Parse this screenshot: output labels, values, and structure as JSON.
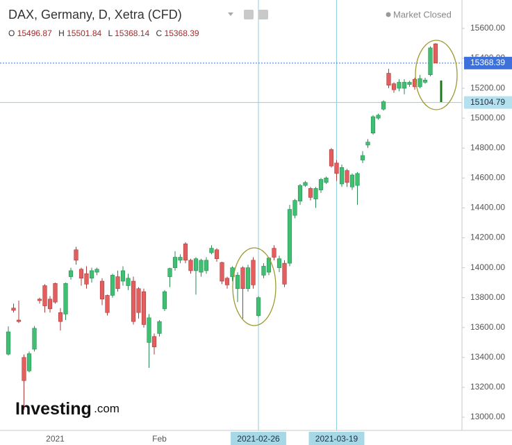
{
  "chart_data": {
    "type": "candlestick",
    "title": "DAX, Germany, D, Xetra (CFD)",
    "status": "Market Closed",
    "ohlc_labels": [
      "O",
      "H",
      "L",
      "C"
    ],
    "brand": "Investing",
    "brand_suffix": ".com",
    "categories": [
      null,
      null,
      null,
      null,
      null,
      null,
      null,
      null,
      null,
      "2021",
      null,
      null,
      null,
      null,
      null,
      null,
      null,
      null,
      null,
      null,
      null,
      null,
      null,
      null,
      null,
      null,
      null,
      null,
      null,
      "Feb",
      null,
      null,
      null,
      null,
      null,
      null,
      null,
      null,
      null,
      null,
      null,
      null,
      null,
      null,
      null,
      null,
      null,
      null,
      "2021-02-26",
      null,
      null,
      null,
      null,
      null,
      null,
      null,
      null,
      null,
      null,
      null,
      null,
      null,
      null,
      "2021-03-19",
      null,
      null,
      null,
      null,
      null,
      null,
      null,
      null,
      null,
      null,
      null,
      null,
      null,
      null,
      null,
      null,
      null,
      null,
      null
    ],
    "highlighted_categories": [
      48,
      63
    ],
    "open": [
      13422,
      13730,
      13650,
      13400,
      13310,
      13455,
      13790,
      13880,
      13790,
      13895,
      13700,
      13690,
      13940,
      14120,
      13990,
      13960,
      13930,
      13970,
      13910,
      13815,
      13815,
      13940,
      13910,
      13880,
      13910,
      13860,
      13840,
      13500,
      13540,
      13560,
      13725,
      13940,
      14000,
      14050,
      14160,
      14050,
      13980,
      13970,
      13980,
      14100,
      14120,
      14035,
      13930,
      13940,
      13860,
      14000,
      13860,
      14050,
      13680,
      13950,
      13970,
      14130,
      14000,
      14030,
      14030,
      14350,
      14445,
      14550,
      14530,
      14460,
      14520,
      14570,
      14790,
      14700,
      14560,
      14650,
      14540,
      14550,
      14720,
      14820,
      14900,
      15000,
      15060,
      15300,
      15230,
      15200,
      15200,
      15225,
      15260,
      15210,
      15240,
      15290,
      15496.87
    ],
    "high": [
      13608,
      13760,
      13780,
      13420,
      13440,
      13610,
      13800,
      13890,
      13810,
      13900,
      13730,
      13900,
      14000,
      14140,
      14000,
      14010,
      14000,
      14000,
      13930,
      13820,
      13960,
      13980,
      14010,
      13960,
      13940,
      13870,
      13860,
      13690,
      13560,
      13650,
      13850,
      14000,
      14110,
      14090,
      14170,
      14060,
      14070,
      14060,
      14070,
      14150,
      14130,
      14040,
      13940,
      14010,
      13970,
      14010,
      14020,
      14070,
      13810,
      14030,
      14070,
      14150,
      14080,
      14050,
      14420,
      14460,
      14560,
      14580,
      14540,
      14540,
      14600,
      14610,
      14800,
      14720,
      14690,
      14660,
      14630,
      14640,
      14780,
      14860,
      15020,
      15030,
      15120,
      15330,
      15240,
      15260,
      15260,
      15250,
      15270,
      15290,
      15270,
      15480,
      15501.84
    ],
    "low": [
      13413,
      13700,
      13630,
      13050,
      13300,
      13440,
      13760,
      13700,
      13700,
      13760,
      13580,
      13650,
      13920,
      14020,
      13880,
      13860,
      13900,
      13950,
      13750,
      13680,
      13800,
      13840,
      13880,
      13850,
      13620,
      13660,
      13600,
      13330,
      13420,
      13540,
      13710,
      13870,
      13980,
      14030,
      14030,
      13960,
      13820,
      13940,
      13960,
      14090,
      14040,
      13890,
      13860,
      13910,
      13770,
      13660,
      13840,
      13860,
      13670,
      13930,
      13950,
      14050,
      13970,
      13870,
      14010,
      14330,
      14420,
      14540,
      14450,
      14400,
      14500,
      14560,
      14670,
      14580,
      14540,
      14540,
      14520,
      14420,
      14700,
      14800,
      14890,
      14990,
      15050,
      15200,
      15170,
      15180,
      15160,
      15210,
      15190,
      15200,
      15230,
      15280,
      15368.14
    ],
    "close": [
      13571,
      13715,
      13640,
      13245,
      13425,
      13595,
      13780,
      13745,
      13725,
      13770,
      13640,
      13895,
      13980,
      14050,
      13930,
      13890,
      13980,
      13990,
      13790,
      13700,
      13950,
      13860,
      13980,
      13930,
      13640,
      13700,
      13620,
      13665,
      13470,
      13640,
      13840,
      13995,
      14070,
      14070,
      14050,
      13980,
      14060,
      14050,
      14050,
      14130,
      14060,
      13910,
      13885,
      14000,
      13950,
      13860,
      14000,
      13885,
      13800,
      14010,
      14065,
      14070,
      14060,
      13890,
      14390,
      14450,
      14550,
      14570,
      14470,
      14530,
      14590,
      14600,
      14680,
      14630,
      14670,
      14570,
      14620,
      14630,
      14750,
      14840,
      15010,
      15020,
      15110,
      15220,
      15190,
      15240,
      15240,
      15240,
      15210,
      15265,
      15255,
      15470,
      15368.39
    ],
    "up_color": "#3fbf72",
    "down_color": "#e35f5f",
    "crosshair_price": 15104.79,
    "ylim": [
      12912,
      15790
    ],
    "yticks": [
      {
        "value": 13000,
        "label": "13000.00"
      },
      {
        "value": 13200,
        "label": "13200.00"
      },
      {
        "value": 13400,
        "label": "13400.00"
      },
      {
        "value": 13600,
        "label": "13600.00"
      },
      {
        "value": 13800,
        "label": "13800.00"
      },
      {
        "value": 14000,
        "label": "14000.00"
      },
      {
        "value": 14200,
        "label": "14200.00"
      },
      {
        "value": 14400,
        "label": "14400.00"
      },
      {
        "value": 14600,
        "label": "14600.00"
      },
      {
        "value": 14800,
        "label": "14800.00"
      },
      {
        "value": 15000,
        "label": "15000.00"
      },
      {
        "value": 15200,
        "label": "15200.00"
      },
      {
        "value": 15400,
        "label": "15400.00"
      },
      {
        "value": 15600,
        "label": "15600.00"
      }
    ],
    "grid": false
  }
}
